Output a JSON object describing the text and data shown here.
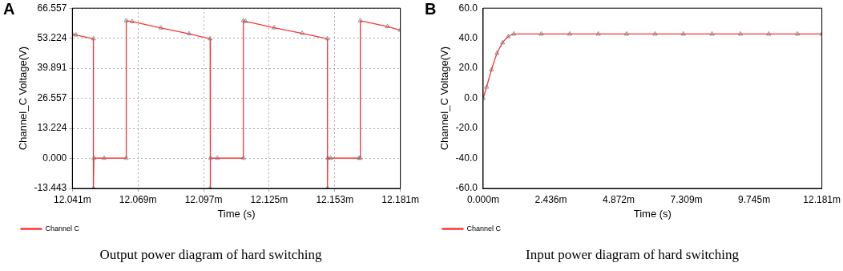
{
  "chart_data": [
    {
      "type": "line",
      "annotations": [
        "A",
        "Output power diagram of hard switching"
      ],
      "xlabel": "Time (s)",
      "ylabel": "Channel_C Voltage(V)",
      "xlim": [
        12.041,
        12.181
      ],
      "xticks": [
        {
          "value": 12.041,
          "label": "12.041m"
        },
        {
          "value": 12.069,
          "label": "12.069m"
        },
        {
          "value": 12.097,
          "label": "12.097m"
        },
        {
          "value": 12.125,
          "label": "12.125m"
        },
        {
          "value": 12.153,
          "label": "12.153m"
        },
        {
          "value": 12.181,
          "label": "12.181m"
        }
      ],
      "ylim": [
        -13.443,
        66.557
      ],
      "yticks": [
        -13.443,
        {
          "value": 0,
          "label": "0.000"
        },
        13.224,
        26.557,
        39.891,
        53.224,
        66.557
      ],
      "grid": true,
      "legend": "bottom left",
      "marker": "triangle",
      "line_style": "solid",
      "series": [
        {
          "name": "Channel C",
          "color": "#ff3333",
          "x": [
            12.041,
            12.0425,
            12.05,
            12.05,
            12.0502,
            12.0545,
            12.064,
            12.064,
            12.0665,
            12.0788,
            12.0908,
            12.0998,
            12.0998,
            12.1,
            12.1029,
            12.114,
            12.114,
            12.1149,
            12.1271,
            12.1391,
            12.1499,
            12.1499,
            12.15,
            12.1512,
            12.1633,
            12.1639,
            12.1639,
            12.1755,
            12.181
          ],
          "values": [
            55.0,
            54.7,
            53.0,
            -13.4,
            0,
            0,
            0,
            61.0,
            60.6,
            57.8,
            55.2,
            53.0,
            -13.4,
            0,
            0,
            0,
            61.0,
            60.7,
            57.9,
            55.4,
            53.0,
            -13.4,
            0,
            0,
            0,
            0,
            61.0,
            58.4,
            56.8
          ]
        }
      ]
    },
    {
      "type": "line",
      "annotations": [
        "B",
        "Input power diagram of hard switching"
      ],
      "xlabel": "Time (s)",
      "ylabel": "Channel_C Voltage(V)",
      "xlim": [
        0,
        12.181
      ],
      "xticks": [
        {
          "value": 0,
          "label": "0.000m"
        },
        {
          "value": 2.436,
          "label": "2.436m"
        },
        {
          "value": 4.872,
          "label": "4.872m"
        },
        {
          "value": 7.309,
          "label": "7.309m"
        },
        {
          "value": 9.745,
          "label": "9.745m"
        },
        {
          "value": 12.181,
          "label": "12.181m"
        }
      ],
      "ylim": [
        -60,
        60
      ],
      "yticks": [
        {
          "value": -60,
          "label": "-60.0"
        },
        {
          "value": -40,
          "label": "-40.0"
        },
        {
          "value": -20,
          "label": "-20.0"
        },
        {
          "value": 0,
          "label": "0.0"
        },
        {
          "value": 20,
          "label": "20.0"
        },
        {
          "value": 40,
          "label": "40.0"
        },
        {
          "value": 60,
          "label": "60.0"
        }
      ],
      "legend": "bottom left",
      "marker": "triangle",
      "line_style": "solid",
      "series": [
        {
          "name": "Channel C",
          "color": "#ff3333",
          "x": [
            0,
            0.123,
            0.3,
            0.5,
            0.7,
            0.9,
            1.1,
            2.09,
            3.11,
            4.14,
            5.16,
            6.18,
            7.2,
            8.23,
            9.25,
            10.27,
            11.3,
            12.181
          ],
          "values": [
            0,
            7.5,
            19,
            30,
            37,
            41,
            42.8,
            42.8,
            42.8,
            42.8,
            42.8,
            42.8,
            42.8,
            42.8,
            42.8,
            42.8,
            42.8,
            42.8
          ]
        }
      ]
    }
  ]
}
